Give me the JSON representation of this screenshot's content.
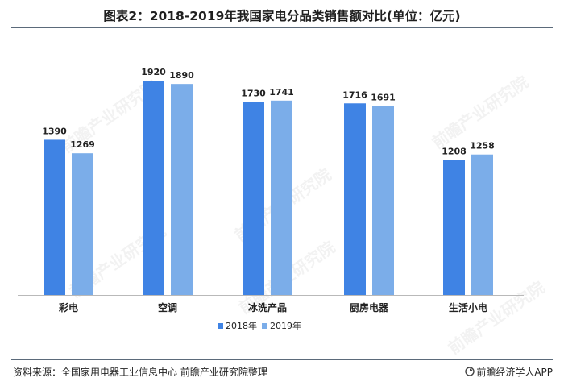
{
  "page": {
    "title": "图表2：2018-2019年我国家电分品类销售额对比(单位：亿元)",
    "source": "资料来源：全国家用电器工业信息中心 前瞻产业研究院整理",
    "brand": "前瞻经济学人APP",
    "watermark": "前瞻产业研究院"
  },
  "colors": {
    "s2018": "#3f83e4",
    "s2019": "#7bade9",
    "axis": "#b9b9b9",
    "rule": "#5b6a7a"
  },
  "chart_data": {
    "type": "bar",
    "title": "2018-2019年我国家电分品类销售额对比(单位：亿元)",
    "categories": [
      "彩电",
      "空调",
      "冰洗产品",
      "厨房电器",
      "生活小电"
    ],
    "series": [
      {
        "name": "2018年",
        "values": [
          1390,
          1920,
          1730,
          1716,
          1208
        ]
      },
      {
        "name": "2019年",
        "values": [
          1269,
          1890,
          1741,
          1691,
          1258
        ]
      }
    ],
    "xlabel": "",
    "ylabel": "",
    "ylim": [
      0,
      2050
    ],
    "grid": false,
    "legend": "bottom"
  }
}
